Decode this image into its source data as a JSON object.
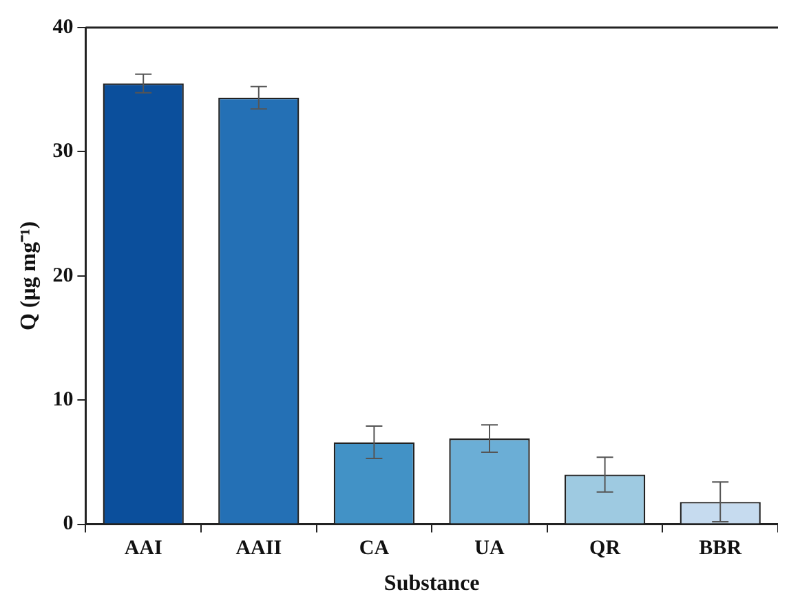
{
  "chart_data": {
    "type": "bar",
    "xlabel": "Substance",
    "ylabel": "Q (μg mg⁻¹)",
    "categories": [
      "AAI",
      "AAII",
      "CA",
      "UA",
      "QR",
      "BBR"
    ],
    "values": [
      35.5,
      34.35,
      6.6,
      6.9,
      4.0,
      1.8
    ],
    "errors": [
      0.75,
      0.9,
      1.3,
      1.1,
      1.4,
      1.6
    ],
    "colors": [
      "#0b4f9c",
      "#2470b5",
      "#4292c6",
      "#6baed6",
      "#9ecae1",
      "#c6dbef"
    ],
    "ylim": [
      0,
      40
    ],
    "yticks": [
      0,
      10,
      20,
      30,
      40
    ],
    "grid": false,
    "legend": false
  }
}
